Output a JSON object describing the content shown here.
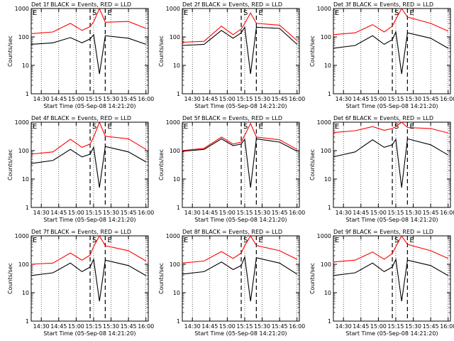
{
  "chart_data": [
    {
      "type": "line",
      "title": "Det 1f BLACK = Events, RED = LLD",
      "xlabel": "Start Time (05-Sep-08 14:21:20)",
      "ylabel": "Counts/sec",
      "xticks": [
        "14:30",
        "14:45",
        "15:00",
        "15:15",
        "15:30",
        "15:45",
        "16:00"
      ],
      "xlim": [
        "14:21:20",
        "16:02:00"
      ],
      "yscale": "log",
      "ylim": [
        1,
        1000
      ],
      "yticks": [
        "1",
        "10",
        "100",
        "1000"
      ],
      "markers": [
        {
          "label": "E",
          "at": "14:21:20"
        },
        {
          "label": "S",
          "at": "15:12"
        },
        {
          "label": "E",
          "at": "15:25"
        }
      ],
      "x": [
        "14:21",
        "14:40",
        "14:55",
        "15:05",
        "15:12",
        "15:15",
        "15:20",
        "15:25",
        "15:45",
        "16:00"
      ],
      "series": [
        {
          "name": "Events",
          "color": "#000000",
          "values": [
            55,
            62,
            95,
            62,
            85,
            120,
            5,
            110,
            90,
            55
          ]
        },
        {
          "name": "LLD",
          "color": "#ff0000",
          "values": [
            130,
            150,
            300,
            170,
            230,
            340,
            1000,
            330,
            350,
            200
          ]
        }
      ]
    },
    {
      "type": "line",
      "title": "Det 2f BLACK = Events, RED = LLD",
      "xlabel": "Start Time (05-Sep-08 14:21:20)",
      "ylabel": "Counts/sec",
      "xticks": [
        "14:30",
        "14:45",
        "15:00",
        "15:15",
        "15:30",
        "15:45",
        "16:00"
      ],
      "xlim": [
        "14:21:20",
        "16:02:00"
      ],
      "yscale": "log",
      "ylim": [
        1,
        1000
      ],
      "yticks": [
        "1",
        "10",
        "100",
        "1000"
      ],
      "markers": [
        {
          "label": "E",
          "at": "14:21:20"
        },
        {
          "label": "S",
          "at": "15:12"
        },
        {
          "label": "E",
          "at": "15:25"
        }
      ],
      "x": [
        "14:21",
        "14:40",
        "14:55",
        "15:05",
        "15:12",
        "15:15",
        "15:20",
        "15:25",
        "15:45",
        "16:00"
      ],
      "series": [
        {
          "name": "Events",
          "color": "#000000",
          "values": [
            50,
            55,
            170,
            90,
            140,
            220,
            5,
            220,
            200,
            55
          ]
        },
        {
          "name": "LLD",
          "color": "#ff0000",
          "values": [
            65,
            70,
            240,
            120,
            190,
            300,
            700,
            300,
            260,
            75
          ]
        }
      ]
    },
    {
      "type": "line",
      "title": "Det 3f BLACK = Events, RED = LLD",
      "xlabel": "Start Time (05-Sep-08 14:21:20)",
      "ylabel": "Counts/sec",
      "xticks": [
        "14:30",
        "14:45",
        "15:00",
        "15:15",
        "15:30",
        "15:45",
        "16:00"
      ],
      "xlim": [
        "14:21:20",
        "16:02:00"
      ],
      "yscale": "log",
      "ylim": [
        1,
        1000
      ],
      "yticks": [
        "1",
        "10",
        "100",
        "1000"
      ],
      "markers": [
        {
          "label": "E",
          "at": "14:21:20"
        },
        {
          "label": "S",
          "at": "15:12"
        },
        {
          "label": "E",
          "at": "15:25"
        }
      ],
      "x": [
        "14:21",
        "14:40",
        "14:55",
        "15:05",
        "15:12",
        "15:15",
        "15:20",
        "15:25",
        "15:45",
        "16:00"
      ],
      "series": [
        {
          "name": "Events",
          "color": "#000000",
          "values": [
            40,
            50,
            110,
            55,
            80,
            150,
            5,
            140,
            90,
            40
          ]
        },
        {
          "name": "LLD",
          "color": "#ff0000",
          "values": [
            120,
            140,
            270,
            150,
            240,
            420,
            1000,
            500,
            300,
            160
          ]
        }
      ]
    },
    {
      "type": "line",
      "title": "Det 4f BLACK = Events, RED = LLD",
      "xlabel": "Start Time (05-Sep-08 14:21:20)",
      "ylabel": "Counts/sec",
      "xticks": [
        "14:30",
        "14:45",
        "15:00",
        "15:15",
        "15:30",
        "15:45",
        "16:00"
      ],
      "xlim": [
        "14:21:20",
        "16:02:00"
      ],
      "yscale": "log",
      "ylim": [
        1,
        1000
      ],
      "yticks": [
        "1",
        "10",
        "100",
        "1000"
      ],
      "markers": [
        {
          "label": "E",
          "at": "14:21:20"
        },
        {
          "label": "S",
          "at": "15:12"
        },
        {
          "label": "E",
          "at": "15:25"
        }
      ],
      "x": [
        "14:21",
        "14:40",
        "14:55",
        "15:05",
        "15:12",
        "15:15",
        "15:20",
        "15:25",
        "15:45",
        "16:00"
      ],
      "series": [
        {
          "name": "Events",
          "color": "#000000",
          "values": [
            35,
            45,
            110,
            60,
            75,
            130,
            5,
            140,
            90,
            40
          ]
        },
        {
          "name": "LLD",
          "color": "#ff0000",
          "values": [
            75,
            90,
            250,
            130,
            170,
            300,
            1000,
            320,
            260,
            110
          ]
        }
      ]
    },
    {
      "type": "line",
      "title": "Det 5f BLACK = Events, RED = LLD",
      "xlabel": "Start Time (05-Sep-08 14:21:20)",
      "ylabel": "Counts/sec",
      "xticks": [
        "14:30",
        "14:45",
        "15:00",
        "15:15",
        "15:30",
        "15:45",
        "16:00"
      ],
      "xlim": [
        "14:21:20",
        "16:02:00"
      ],
      "yscale": "log",
      "ylim": [
        1,
        1000
      ],
      "yticks": [
        "1",
        "10",
        "100",
        "1000"
      ],
      "markers": [
        {
          "label": "E",
          "at": "14:21:20"
        },
        {
          "label": "S",
          "at": "15:12"
        },
        {
          "label": "E",
          "at": "15:25"
        }
      ],
      "x": [
        "14:21",
        "14:40",
        "14:55",
        "15:05",
        "15:12",
        "15:15",
        "15:20",
        "15:25",
        "15:45",
        "16:00"
      ],
      "series": [
        {
          "name": "Events",
          "color": "#000000",
          "values": [
            95,
            110,
            260,
            150,
            170,
            250,
            5,
            260,
            200,
            95
          ]
        },
        {
          "name": "LLD",
          "color": "#ff0000",
          "values": [
            100,
            120,
            300,
            170,
            200,
            350,
            900,
            300,
            240,
            110
          ]
        }
      ]
    },
    {
      "type": "line",
      "title": "Det 6f BLACK = Events, RED = LLD",
      "xlabel": "Start Time (05-Sep-08 14:21:20)",
      "ylabel": "Counts/sec",
      "xticks": [
        "14:30",
        "14:45",
        "15:00",
        "15:15",
        "15:30",
        "15:45",
        "16:00"
      ],
      "xlim": [
        "14:21:20",
        "16:02:00"
      ],
      "yscale": "log",
      "ylim": [
        1,
        1000
      ],
      "yticks": [
        "1",
        "10",
        "100",
        "1000"
      ],
      "markers": [
        {
          "label": "E",
          "at": "14:21:20"
        },
        {
          "label": "S",
          "at": "15:12"
        },
        {
          "label": "E",
          "at": "15:25"
        }
      ],
      "x": [
        "14:21",
        "14:40",
        "14:55",
        "15:05",
        "15:12",
        "15:15",
        "15:20",
        "15:25",
        "15:45",
        "16:00"
      ],
      "series": [
        {
          "name": "Events",
          "color": "#000000",
          "values": [
            60,
            90,
            240,
            130,
            160,
            250,
            5,
            260,
            160,
            70
          ]
        },
        {
          "name": "LLD",
          "color": "#ff0000",
          "values": [
            430,
            500,
            700,
            520,
            600,
            700,
            1000,
            650,
            600,
            420
          ]
        }
      ]
    },
    {
      "type": "line",
      "title": "Det 7f BLACK = Events, RED = LLD",
      "xlabel": "Start Time (05-Sep-08 14:21:20)",
      "ylabel": "Counts/sec",
      "xticks": [
        "14:30",
        "14:45",
        "15:00",
        "15:15",
        "15:30",
        "15:45",
        "16:00"
      ],
      "xlim": [
        "14:21:20",
        "16:02:00"
      ],
      "yscale": "log",
      "ylim": [
        1,
        1000
      ],
      "yticks": [
        "1",
        "10",
        "100",
        "1000"
      ],
      "markers": [
        {
          "label": "E",
          "at": "14:21:20"
        },
        {
          "label": "S",
          "at": "15:12"
        },
        {
          "label": "E",
          "at": "15:25"
        }
      ],
      "x": [
        "14:21",
        "14:40",
        "14:55",
        "15:05",
        "15:12",
        "15:15",
        "15:20",
        "15:25",
        "15:45",
        "16:00"
      ],
      "series": [
        {
          "name": "Events",
          "color": "#000000",
          "values": [
            40,
            50,
            110,
            55,
            80,
            150,
            5,
            140,
            90,
            40
          ]
        },
        {
          "name": "LLD",
          "color": "#ff0000",
          "values": [
            100,
            110,
            250,
            140,
            210,
            420,
            1000,
            450,
            300,
            130
          ]
        }
      ]
    },
    {
      "type": "line",
      "title": "Det 8f BLACK = Events, RED = LLD",
      "xlabel": "Start Time (05-Sep-08 14:21:20)",
      "ylabel": "Counts/sec",
      "xticks": [
        "14:30",
        "14:45",
        "15:00",
        "15:15",
        "15:30",
        "15:45",
        "16:00"
      ],
      "xlim": [
        "14:21:20",
        "16:02:00"
      ],
      "yscale": "log",
      "ylim": [
        1,
        1000
      ],
      "yticks": [
        "1",
        "10",
        "100",
        "1000"
      ],
      "markers": [
        {
          "label": "E",
          "at": "14:21:20"
        },
        {
          "label": "S",
          "at": "15:12"
        },
        {
          "label": "E",
          "at": "15:25"
        }
      ],
      "x": [
        "14:21",
        "14:40",
        "14:55",
        "15:05",
        "15:12",
        "15:15",
        "15:20",
        "15:25",
        "15:45",
        "16:00"
      ],
      "series": [
        {
          "name": "Events",
          "color": "#000000",
          "values": [
            45,
            55,
            120,
            65,
            90,
            180,
            5,
            170,
            110,
            45
          ]
        },
        {
          "name": "LLD",
          "color": "#ff0000",
          "values": [
            110,
            130,
            280,
            160,
            250,
            450,
            1000,
            460,
            300,
            150
          ]
        }
      ]
    },
    {
      "type": "line",
      "title": "Det 9f BLACK = Events, RED = LLD",
      "xlabel": "Start Time (05-Sep-08 14:21:20)",
      "ylabel": "Counts/sec",
      "xticks": [
        "14:30",
        "14:45",
        "15:00",
        "15:15",
        "15:30",
        "15:45",
        "16:00"
      ],
      "xlim": [
        "14:21:20",
        "16:02:00"
      ],
      "yscale": "log",
      "ylim": [
        1,
        1000
      ],
      "yticks": [
        "1",
        "10",
        "100",
        "1000"
      ],
      "markers": [
        {
          "label": "E",
          "at": "14:21:20"
        },
        {
          "label": "S",
          "at": "15:12"
        },
        {
          "label": "E",
          "at": "15:25"
        }
      ],
      "x": [
        "14:21",
        "14:40",
        "14:55",
        "15:05",
        "15:12",
        "15:15",
        "15:20",
        "15:25",
        "15:45",
        "16:00"
      ],
      "series": [
        {
          "name": "Events",
          "color": "#000000",
          "values": [
            40,
            50,
            110,
            55,
            80,
            150,
            5,
            140,
            90,
            40
          ]
        },
        {
          "name": "LLD",
          "color": "#ff0000",
          "values": [
            120,
            140,
            270,
            150,
            240,
            420,
            1000,
            500,
            300,
            160
          ]
        }
      ]
    }
  ]
}
